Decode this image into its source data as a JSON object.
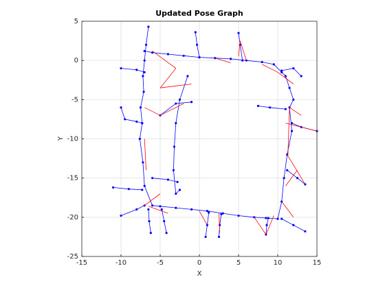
{
  "chart_data": {
    "type": "line",
    "title": "Updated Pose Graph",
    "x_label": "X",
    "y_label": "Y",
    "xlim": [
      -15,
      15
    ],
    "xticks": [
      -15,
      -10,
      -5,
      0,
      5,
      10,
      15
    ],
    "ylim": [
      -25,
      5
    ],
    "yticks": [
      -25,
      -20,
      -15,
      -10,
      -5,
      0,
      5
    ],
    "grid": true,
    "series": [
      {
        "color": "#0000ff",
        "marker": true,
        "x": [
          -6.5,
          -6.8,
          -7,
          -7.2,
          -7.1,
          -7.5,
          -7.3,
          -7.6,
          -7.2,
          -7,
          -6,
          -5,
          -3,
          -1,
          1,
          3,
          5,
          7,
          8.5,
          10,
          10.5,
          10.8,
          11.2,
          11.8,
          11.5,
          12,
          11.5,
          11,
          10.5,
          9.5,
          8,
          6,
          4,
          2,
          0,
          -2,
          -4,
          -6,
          -7,
          null,
          -10,
          -8,
          -7,
          null,
          -10,
          -9.5,
          -8,
          -7.3,
          null,
          -11,
          -9,
          -7.3,
          null,
          -10,
          -8,
          -7,
          null,
          -1.5,
          -2.5,
          -3,
          -3.2,
          -3.3,
          -3,
          -2.5,
          null,
          -6,
          -4,
          -2.8,
          null,
          -6.2,
          -6.4,
          -6.5,
          null,
          -4.2,
          -4.5,
          -4.8,
          null,
          0.8,
          1,
          1.2,
          null,
          2.5,
          2.6,
          2.8,
          null,
          8.5,
          8.6,
          8.8,
          null,
          13.5,
          12,
          10.5,
          null,
          -0.5,
          -0.3,
          0,
          null,
          5,
          5.2,
          5.5,
          null,
          13,
          12,
          10.5,
          null,
          15,
          13,
          11.8,
          null,
          13.5,
          12.5,
          11.2,
          null,
          7.5,
          9,
          11,
          null,
          -5,
          -3,
          -1
        ],
        "y": [
          4.3,
          2,
          0,
          -2,
          -4,
          -6,
          -8,
          -10,
          -13,
          -16,
          -18.5,
          -18.6,
          -18.8,
          -19,
          -19.2,
          -19.5,
          -19.8,
          -20,
          -20.1,
          -20.2,
          -18,
          -15,
          -12,
          -9,
          -6,
          -5,
          -3.5,
          -2,
          -1.5,
          -0.5,
          -0.2,
          0,
          0.2,
          0.3,
          0.4,
          0.6,
          0.8,
          1,
          1.2,
          null,
          -1,
          -1.2,
          -1.5,
          null,
          -6,
          -7.5,
          -7.8,
          -8,
          null,
          -16.2,
          -16.4,
          -16.5,
          null,
          -19.8,
          -19,
          -18.5,
          null,
          -2,
          -5,
          -8,
          -11,
          -14,
          -17,
          -16.5,
          null,
          -15,
          -15.2,
          -15.5,
          null,
          -22,
          -20.5,
          -19,
          null,
          -22,
          -20.5,
          -19,
          null,
          -22.5,
          -21,
          -19.4,
          null,
          -22.5,
          -21,
          -19.6,
          null,
          -22.2,
          -21,
          -20.1,
          null,
          -21.8,
          -21,
          -20.2,
          null,
          3.6,
          2,
          0.4,
          null,
          3.5,
          2,
          0,
          null,
          -2,
          -1,
          -1.3,
          null,
          -9,
          -8.5,
          -8,
          null,
          -15.8,
          -15,
          -14,
          null,
          -5.8,
          -6,
          -6.2,
          null,
          -7,
          -5.5,
          -5.3
        ]
      },
      {
        "color": "#ff0000",
        "marker": false,
        "x": [
          -6,
          -3,
          null,
          -3,
          -5,
          null,
          -5,
          -1,
          null,
          -7,
          -5,
          null,
          -5,
          -2,
          null,
          2,
          4,
          null,
          5,
          5.2,
          null,
          5.2,
          6,
          null,
          8,
          10,
          null,
          10,
          12,
          null,
          11.5,
          13,
          null,
          11,
          15,
          null,
          11.2,
          13.5,
          null,
          11,
          12.5,
          null,
          10.5,
          12,
          null,
          7,
          8.5,
          null,
          8.5,
          9.5,
          null,
          2.5,
          2.6,
          null,
          -7,
          -5,
          null,
          -6.5,
          -4,
          null,
          0,
          1,
          null,
          11.5,
          11.3,
          null,
          -7,
          -6.8
        ],
        "y": [
          1.2,
          -1,
          null,
          -1,
          -3.5,
          null,
          -3.5,
          -3,
          null,
          -6,
          -7,
          null,
          -7,
          -5.5,
          null,
          0.3,
          -0.3,
          null,
          0.5,
          2.5,
          null,
          2.5,
          0,
          null,
          -0.5,
          -1.5,
          null,
          -1.5,
          -3,
          null,
          -6,
          -7,
          null,
          -8,
          -9,
          null,
          -12,
          -15.8,
          null,
          -16,
          -14,
          null,
          -18,
          -20,
          null,
          -20,
          -22.2,
          null,
          -22.2,
          -19.8,
          null,
          -19.5,
          -22,
          null,
          -18.5,
          -17,
          null,
          -18.6,
          -19.5,
          null,
          -19.2,
          -21,
          null,
          -6,
          -12,
          null,
          -10,
          -14
        ]
      }
    ]
  }
}
